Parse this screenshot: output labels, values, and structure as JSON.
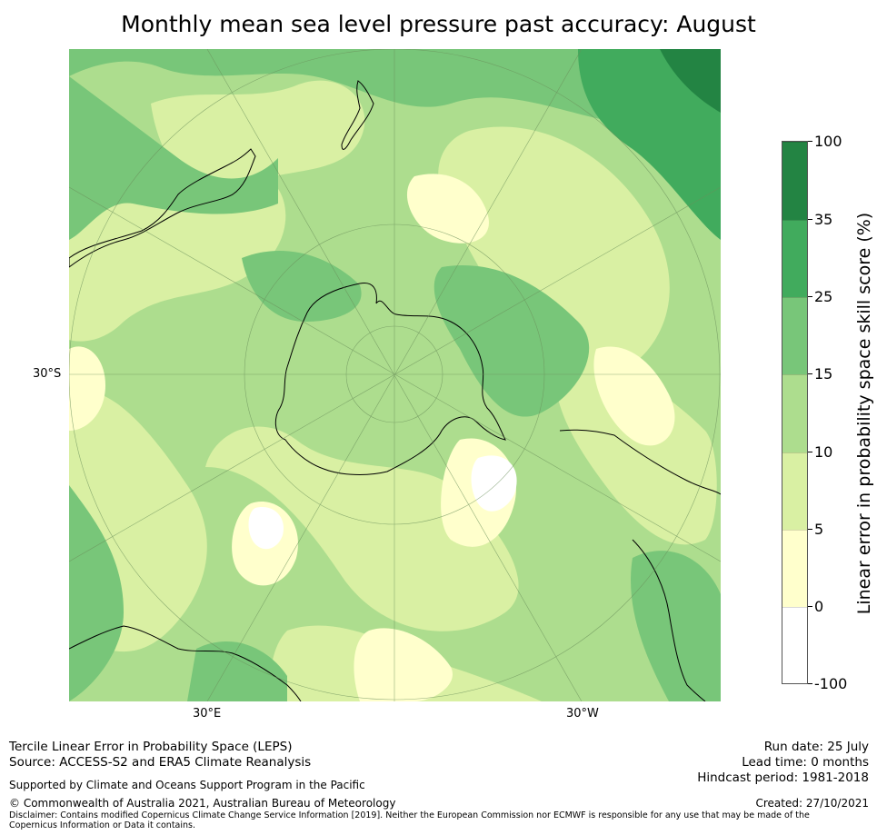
{
  "title": "Monthly mean sea level pressure past accuracy: August",
  "map": {
    "projection": "south-polar-stereographic",
    "lat_label": "30°S",
    "lon_labels": [
      "30°E",
      "30°W"
    ],
    "variable": "Tercile LEPS skill score",
    "icon": "antarctica-map"
  },
  "colorbar": {
    "label": "Linear error in probability space skill score (%)",
    "ticks": [
      "100",
      "35",
      "25",
      "15",
      "10",
      "5",
      "0",
      "-100"
    ],
    "bins": [
      {
        "range": "35 to 100",
        "color": "#238443"
      },
      {
        "range": "25 to 35",
        "color": "#41ab5d"
      },
      {
        "range": "15 to 25",
        "color": "#78c679"
      },
      {
        "range": "10 to 15",
        "color": "#addd8e"
      },
      {
        "range": "5 to 10",
        "color": "#d9f0a3"
      },
      {
        "range": "0 to 5",
        "color": "#ffffcc"
      },
      {
        "range": "-100 to 0",
        "color": "#ffffff"
      }
    ]
  },
  "footer": {
    "method": "Tercile Linear Error in Probability Space (LEPS)",
    "source": "Source: ACCESS-S2 and ERA5 Climate Reanalysis",
    "support": "Supported by Climate and Oceans Support Program in the Pacific",
    "copyright": "© Commonwealth of Australia 2021, Australian Bureau of Meteorology",
    "disclaimer": "Disclaimer: Contains modified Copernicus Climate Change Service Information [2019]. Neither the European Commission nor ECMWF is responsible for any use that may be made of the Copernicus Information or Data it contains.",
    "run_date": "Run date: 25 July",
    "lead_time": "Lead time: 0 months",
    "hindcast": "Hindcast period: 1981-2018",
    "created": "Created: 27/10/2021"
  }
}
